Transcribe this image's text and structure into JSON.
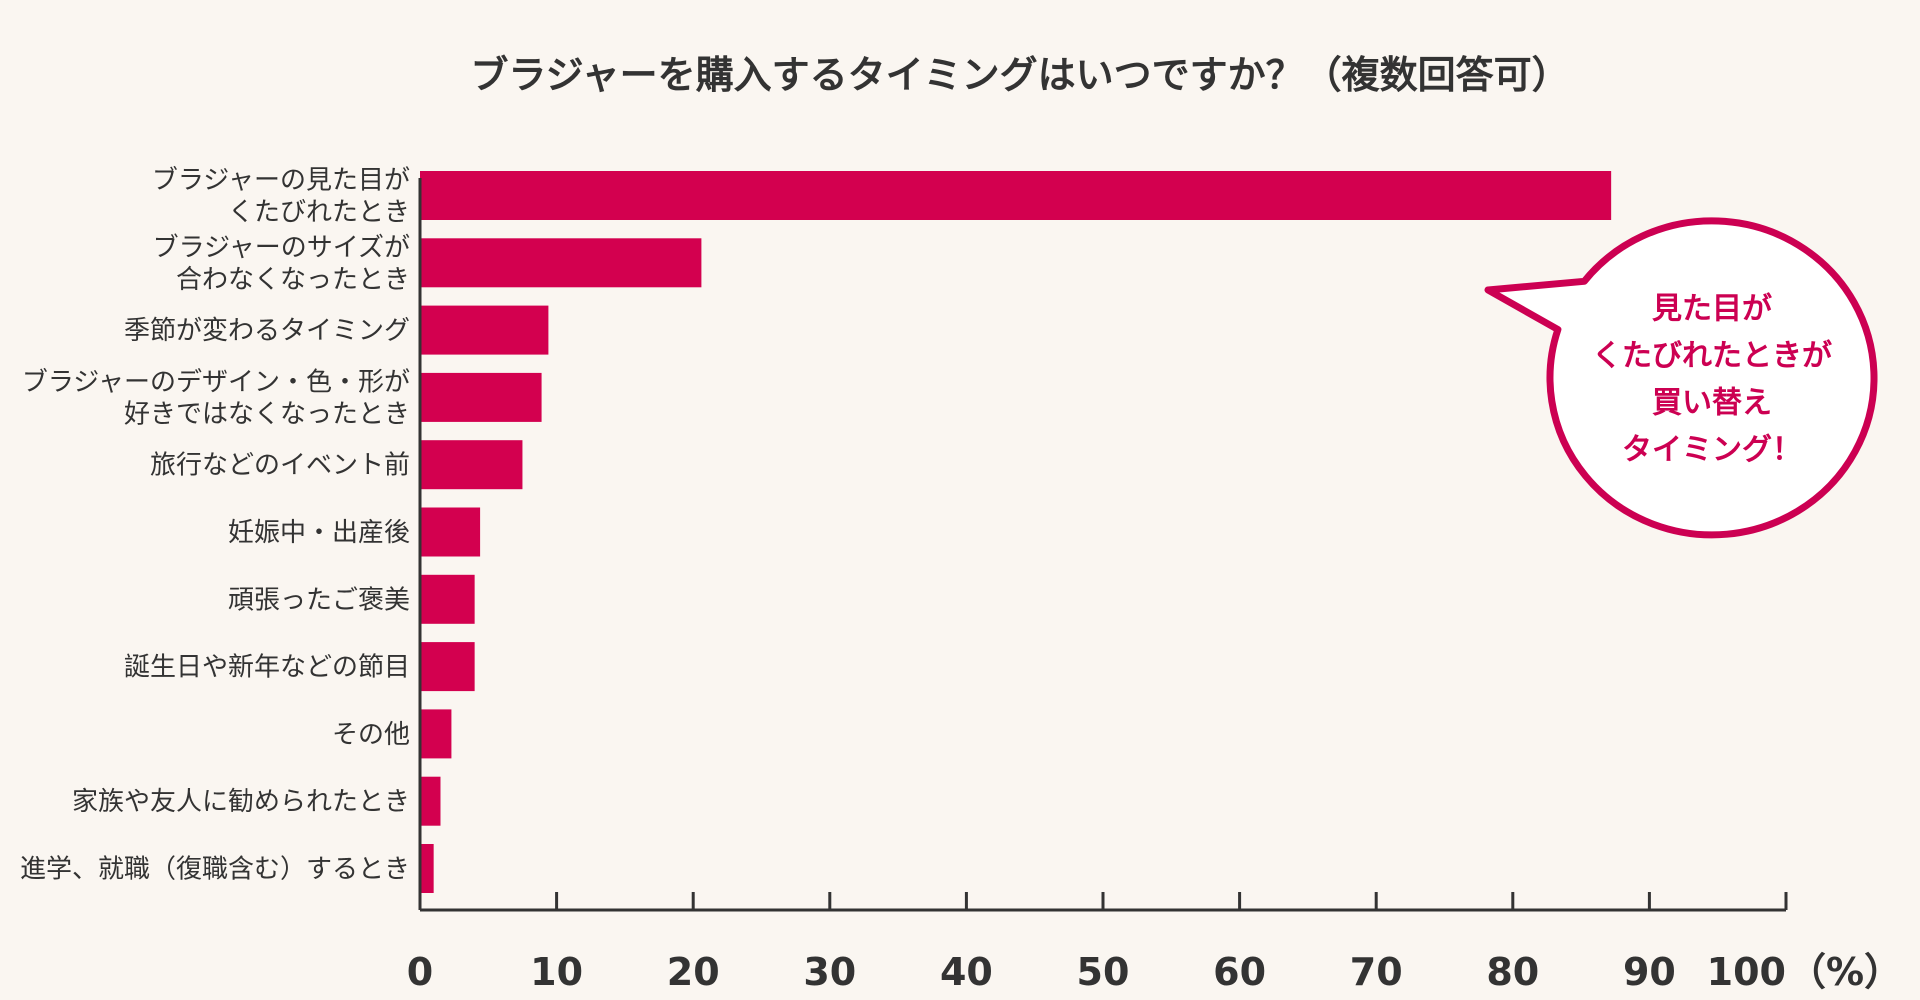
{
  "colors": {
    "bar": "#d3004f",
    "axis": "#333333",
    "callout_border": "#cc0052",
    "callout_fill": "#ffffff",
    "callout_text": "#cc0052",
    "background": "#faf6f1"
  },
  "callout": {
    "lines": [
      "見た目が",
      "くたびれたときが",
      "買い替え",
      "タイミング！"
    ]
  },
  "chart_data": {
    "type": "bar",
    "orientation": "horizontal",
    "title": "ブラジャーを購入するタイミングはいつですか？（複数回答可）",
    "xlabel": "",
    "ylabel": "",
    "xlim": [
      0,
      100
    ],
    "x_unit_label": "（%）",
    "grid": false,
    "ticks": [
      "0",
      "10",
      "20",
      "30",
      "40",
      "50",
      "60",
      "70",
      "80",
      "90",
      "100"
    ],
    "categories": [
      [
        "ブラジャーの見た目が",
        "くたびれたとき"
      ],
      [
        "ブラジャーのサイズが",
        "合わなくなったとき"
      ],
      [
        "季節が変わるタイミング"
      ],
      [
        "ブラジャーのデザイン・色・形が",
        "好きではなくなったとき"
      ],
      [
        "旅行などのイベント前"
      ],
      [
        "妊娠中・出産後"
      ],
      [
        "頑張ったご褒美"
      ],
      [
        "誕生日や新年などの節目"
      ],
      [
        "その他"
      ],
      [
        "家族や友人に勧められたとき"
      ],
      [
        "進学、就職（復職含む）するとき"
      ]
    ],
    "values": [
      87.2,
      20.6,
      9.4,
      8.9,
      7.5,
      4.4,
      4.0,
      4.0,
      2.3,
      1.5,
      1.0
    ]
  }
}
